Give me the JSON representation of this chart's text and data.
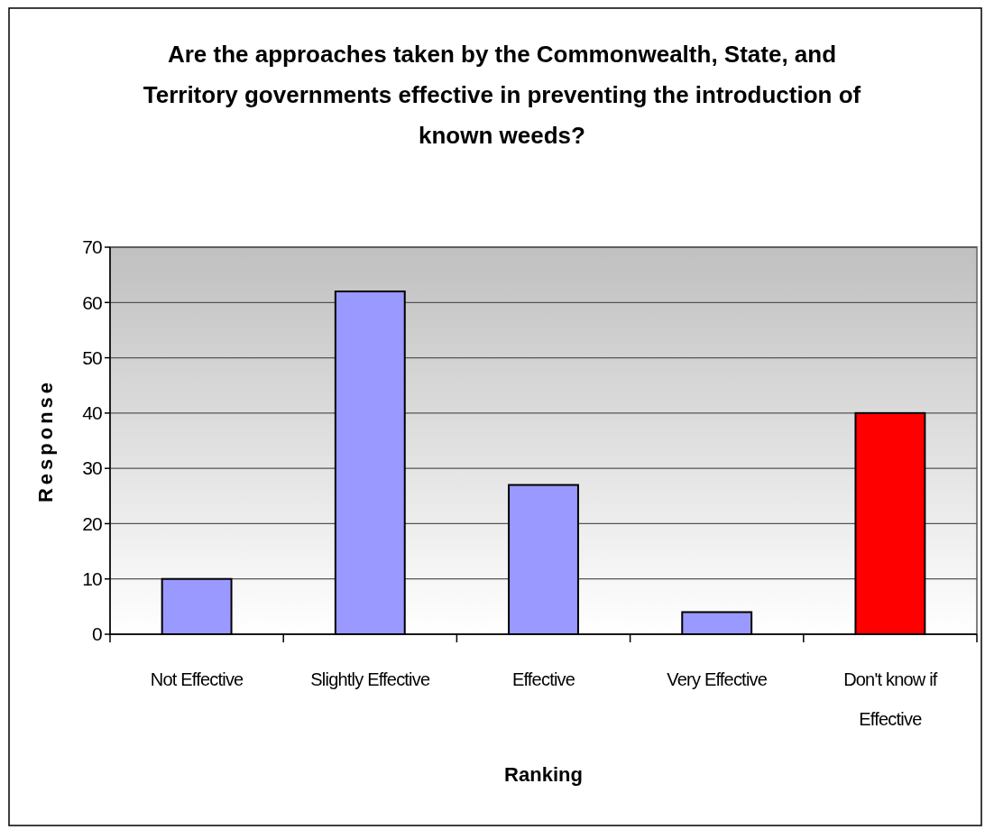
{
  "chart_data": {
    "type": "bar",
    "title": "Are the approaches taken by the Commonwealth, State, and Territory governments effective in preventing the introduction of known weeds?",
    "xlabel": "Ranking",
    "ylabel": "Response",
    "categories": [
      "Not Effective",
      "Slightly Effective",
      "Effective",
      "Very Effective",
      "Don't know if Effective"
    ],
    "values": [
      10,
      62,
      27,
      4,
      40
    ],
    "colors": [
      "#9999ff",
      "#9999ff",
      "#9999ff",
      "#9999ff",
      "#ff0000"
    ],
    "ylim": [
      0,
      70
    ],
    "yticks": [
      0,
      10,
      20,
      30,
      40,
      50,
      60,
      70
    ],
    "grid": "y"
  }
}
